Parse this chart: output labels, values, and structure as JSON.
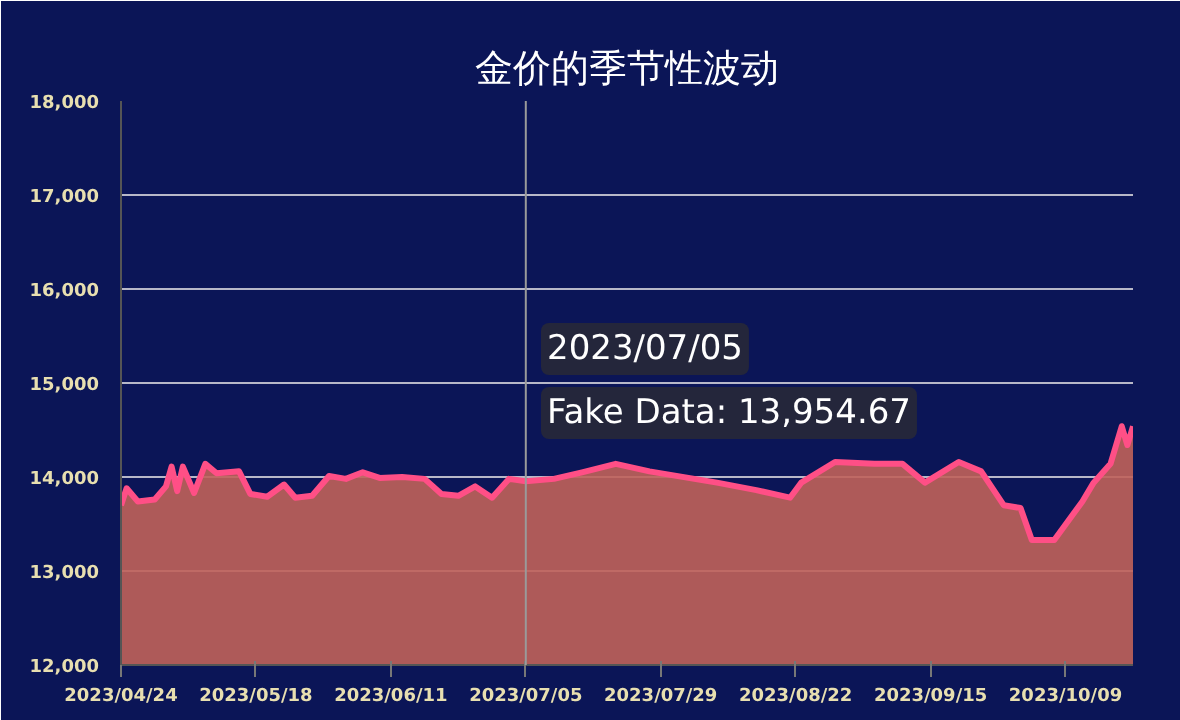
{
  "chart_data": {
    "type": "area",
    "title": "金价的季节性波动",
    "x": [
      "2023-04-24",
      "2023-04-25",
      "2023-04-27",
      "2023-04-30",
      "2023-05-02",
      "2023-05-03",
      "2023-05-04",
      "2023-05-05",
      "2023-05-07",
      "2023-05-09",
      "2023-05-11",
      "2023-05-15",
      "2023-05-17",
      "2023-05-20",
      "2023-05-23",
      "2023-05-25",
      "2023-05-28",
      "2023-05-31",
      "2023-06-03",
      "2023-06-06",
      "2023-06-09",
      "2023-06-13",
      "2023-06-17",
      "2023-06-20",
      "2023-06-23",
      "2023-06-26",
      "2023-06-29",
      "2023-07-02",
      "2023-07-05",
      "2023-07-10",
      "2023-07-15",
      "2023-07-21",
      "2023-07-27",
      "2023-08-08",
      "2023-08-15",
      "2023-08-21",
      "2023-08-23",
      "2023-08-29",
      "2023-09-05",
      "2023-09-10",
      "2023-09-14",
      "2023-09-20",
      "2023-09-24",
      "2023-09-28",
      "2023-10-01",
      "2023-10-03",
      "2023-10-07",
      "2023-10-12",
      "2023-10-14",
      "2023-10-17",
      "2023-10-19",
      "2023-10-20",
      "2023-10-21"
    ],
    "series": [
      {
        "name": "Fake Data",
        "color": "#ff4f86",
        "values": [
          13700,
          13880,
          13740,
          13760,
          13900,
          14110,
          13850,
          14110,
          13830,
          14140,
          14040,
          14060,
          13820,
          13790,
          13920,
          13780,
          13800,
          14010,
          13980,
          14050,
          13990,
          14000,
          13980,
          13820,
          13800,
          13900,
          13780,
          13980,
          13954.67,
          13980,
          14050,
          14140,
          14060,
          13940,
          13860,
          13780,
          13940,
          14160,
          14140,
          14140,
          13940,
          14160,
          14060,
          13700,
          13670,
          13330,
          13330,
          13740,
          13940,
          14140,
          14540,
          14340,
          14540
        ]
      }
    ],
    "xlim": [
      "2023-04-24",
      "2023-10-21"
    ],
    "xticks": [
      {
        "value": "2023-04-24",
        "label": "2023/04/24"
      },
      {
        "value": "2023-05-18",
        "label": "2023/05/18"
      },
      {
        "value": "2023-06-11",
        "label": "2023/06/11"
      },
      {
        "value": "2023-07-05",
        "label": "2023/07/05"
      },
      {
        "value": "2023-07-29",
        "label": "2023/07/29"
      },
      {
        "value": "2023-08-22",
        "label": "2023/08/22"
      },
      {
        "value": "2023-09-15",
        "label": "2023/09/15"
      },
      {
        "value": "2023-10-09",
        "label": "2023/10/09"
      }
    ],
    "ylim": [
      12000,
      18000
    ],
    "yticks": [
      {
        "value": 12000,
        "label": "12,000"
      },
      {
        "value": 13000,
        "label": "13,000"
      },
      {
        "value": 14000,
        "label": "14,000"
      },
      {
        "value": 15000,
        "label": "15,000"
      },
      {
        "value": 16000,
        "label": "16,000"
      },
      {
        "value": 17000,
        "label": "17,000"
      },
      {
        "value": 18000,
        "label": "18,000"
      }
    ],
    "grid": "y",
    "ref_lines": [
      {
        "axis": "x",
        "value": "2023-07-05",
        "label": null,
        "color": "#9a9a9a"
      }
    ],
    "annotations": [
      "2023/07/05",
      ": 13,954.67"
    ]
  }
}
